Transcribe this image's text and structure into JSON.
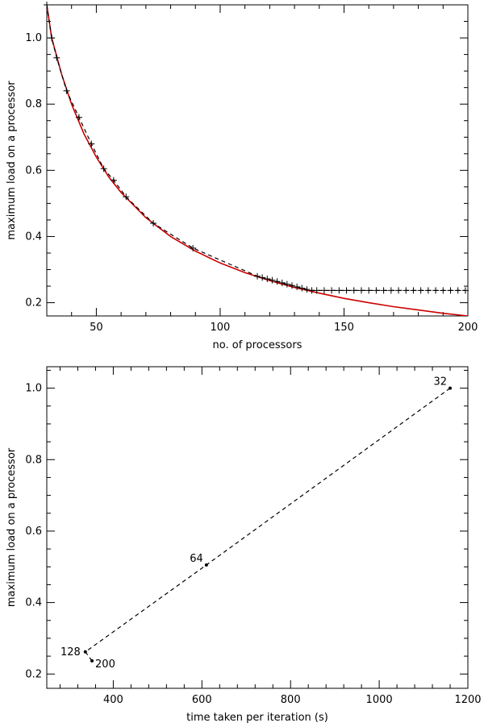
{
  "chart_data": [
    {
      "type": "line",
      "xlabel": "no. of processors",
      "ylabel": "maximum load on a processor",
      "xlim": [
        30,
        200
      ],
      "ylim": [
        0.16,
        1.1
      ],
      "xticks": [
        50,
        100,
        150,
        200
      ],
      "yticks": [
        0.2,
        0.4,
        0.6,
        0.8,
        1.0
      ],
      "ytick_labels": [
        "0.2",
        "0.4",
        "0.6",
        "0.8",
        "1.0"
      ],
      "series": [
        {
          "style": "solid",
          "color": "#cc0000",
          "x": [
            30,
            32,
            36,
            40,
            45,
            50,
            55,
            60,
            70,
            80,
            90,
            100,
            110,
            120,
            130,
            140,
            150,
            160,
            170,
            180,
            190,
            200
          ],
          "y": [
            1.1,
            1.0,
            0.89,
            0.8,
            0.71,
            0.64,
            0.58,
            0.533,
            0.457,
            0.4,
            0.356,
            0.32,
            0.291,
            0.267,
            0.246,
            0.229,
            0.213,
            0.2,
            0.188,
            0.178,
            0.168,
            0.16
          ]
        },
        {
          "style": "dashed-with-markers",
          "color": "#000000",
          "x": [
            30,
            32,
            34,
            38,
            43,
            48,
            53,
            57,
            62,
            73,
            89,
            115,
            117,
            119,
            121,
            123,
            125,
            127,
            129,
            131,
            133,
            135,
            137,
            139,
            142,
            145,
            148,
            151,
            154,
            157,
            160,
            163,
            166,
            169,
            172,
            175,
            178,
            181,
            184,
            187,
            190,
            193,
            196,
            199
          ],
          "y": [
            1.1,
            1.0,
            0.94,
            0.84,
            0.76,
            0.68,
            0.605,
            0.57,
            0.52,
            0.44,
            0.365,
            0.28,
            0.276,
            0.272,
            0.268,
            0.264,
            0.26,
            0.256,
            0.252,
            0.248,
            0.244,
            0.24,
            0.237,
            0.237,
            0.237,
            0.237,
            0.237,
            0.237,
            0.237,
            0.237,
            0.237,
            0.237,
            0.237,
            0.237,
            0.237,
            0.237,
            0.237,
            0.237,
            0.237,
            0.237,
            0.237,
            0.237,
            0.237,
            0.237
          ]
        }
      ]
    },
    {
      "type": "line",
      "xlabel": "time taken per iteration (s)",
      "ylabel": "maximum load on a processor",
      "xlim": [
        250,
        1200
      ],
      "ylim": [
        0.16,
        1.06
      ],
      "xticks": [
        400,
        600,
        800,
        1000,
        1200
      ],
      "yticks": [
        0.2,
        0.4,
        0.6,
        0.8,
        1.0
      ],
      "ytick_labels": [
        "0.2",
        "0.4",
        "0.6",
        "0.8",
        "1.0"
      ],
      "series": [
        {
          "style": "dashed-with-points",
          "color": "#000000",
          "x": [
            1160,
            610,
            337,
            352
          ],
          "y": [
            1.0,
            0.505,
            0.262,
            0.237
          ],
          "labels": [
            "32",
            "64",
            "128",
            "200"
          ]
        }
      ]
    }
  ]
}
